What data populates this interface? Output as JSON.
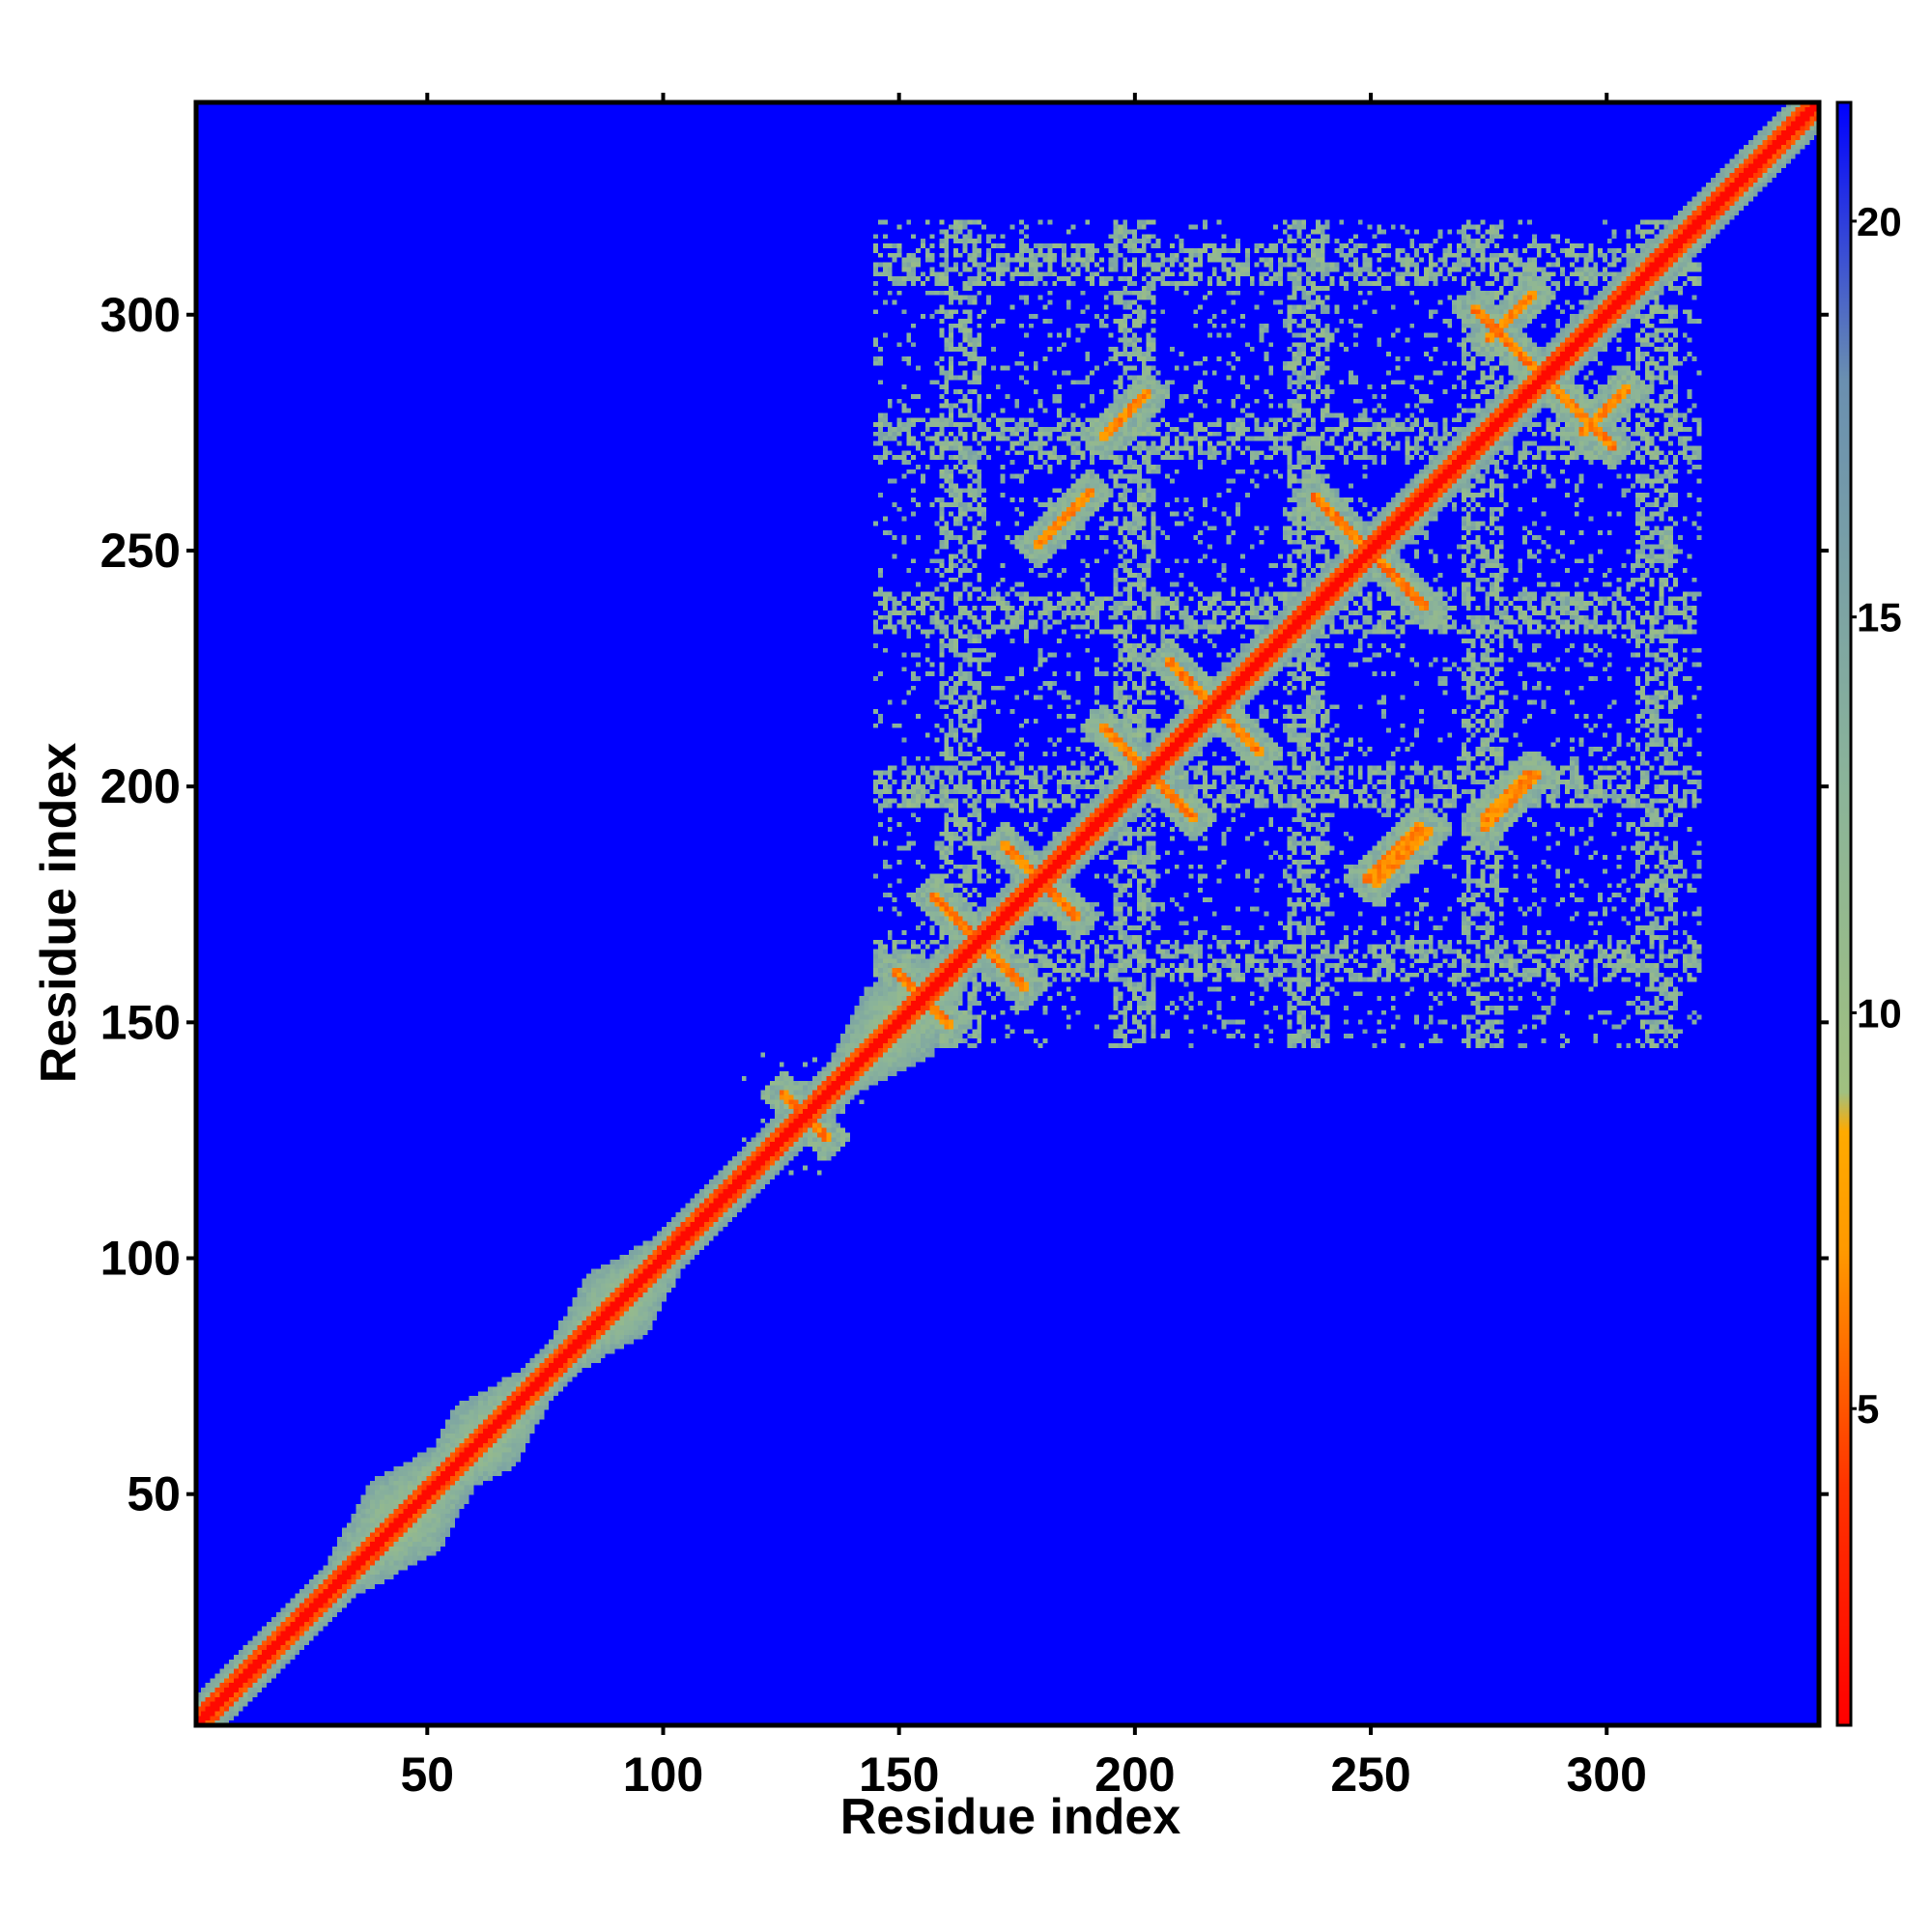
{
  "chart_data": {
    "type": "heatmap",
    "title": "",
    "xlabel": "Residue index",
    "ylabel": "Residue index",
    "xlim": [
      1,
      345
    ],
    "ylim": [
      1,
      345
    ],
    "xticks": [
      50,
      100,
      150,
      200,
      250,
      300
    ],
    "yticks": [
      50,
      100,
      150,
      200,
      250,
      300
    ],
    "colorbar": {
      "range": [
        1,
        21.5
      ],
      "ticks": [
        5,
        10,
        15,
        20
      ],
      "colors": [
        {
          "value": 1,
          "color": "#ff0000"
        },
        {
          "value": 4,
          "color": "#ff3300"
        },
        {
          "value": 7,
          "color": "#ff9900"
        },
        {
          "value": 8.5,
          "color": "#ffaa00"
        },
        {
          "value": 9,
          "color": "#a0c080"
        },
        {
          "value": 13,
          "color": "#8ab39a"
        },
        {
          "value": 18,
          "color": "#6a8fb0"
        },
        {
          "value": 21.5,
          "color": "#0000ff"
        }
      ]
    },
    "background_value": 21.5,
    "structure": {
      "diagonal_band": {
        "from": 1,
        "to": 345
      },
      "contact_region": {
        "x": [
          145,
          320
        ],
        "y": [
          145,
          320
        ]
      },
      "antidiagonal_contacts": [
        {
          "center": [
            180,
            180
          ],
          "half_length": 8
        },
        {
          "center": [
            203,
            203
          ],
          "half_length": 10
        },
        {
          "center": [
            217,
            217
          ],
          "half_length": 10
        },
        {
          "center": [
            250,
            250
          ],
          "half_length": 12
        },
        {
          "center": [
            287,
            287
          ],
          "half_length": 15
        },
        {
          "center": [
            167,
            167
          ],
          "half_length": 10
        },
        {
          "center": [
            155,
            155
          ],
          "half_length": 6
        },
        {
          "center": [
            130,
            130
          ],
          "half_length": 5
        }
      ],
      "offdiagonal_contacts": [
        {
          "center": [
            185,
            257
          ],
          "half_length": 6
        },
        {
          "center": [
            198,
            279
          ],
          "half_length": 5
        },
        {
          "center": [
            257,
            185
          ],
          "half_length": 6
        },
        {
          "center": [
            279,
            198
          ],
          "half_length": 5
        },
        {
          "center": [
            280,
            197
          ],
          "half_length": 6
        },
        {
          "center": [
            255,
            186
          ],
          "half_length": 6
        },
        {
          "center": [
            300,
            280
          ],
          "half_length": 5
        },
        {
          "center": [
            280,
            300
          ],
          "half_length": 5
        }
      ]
    }
  }
}
